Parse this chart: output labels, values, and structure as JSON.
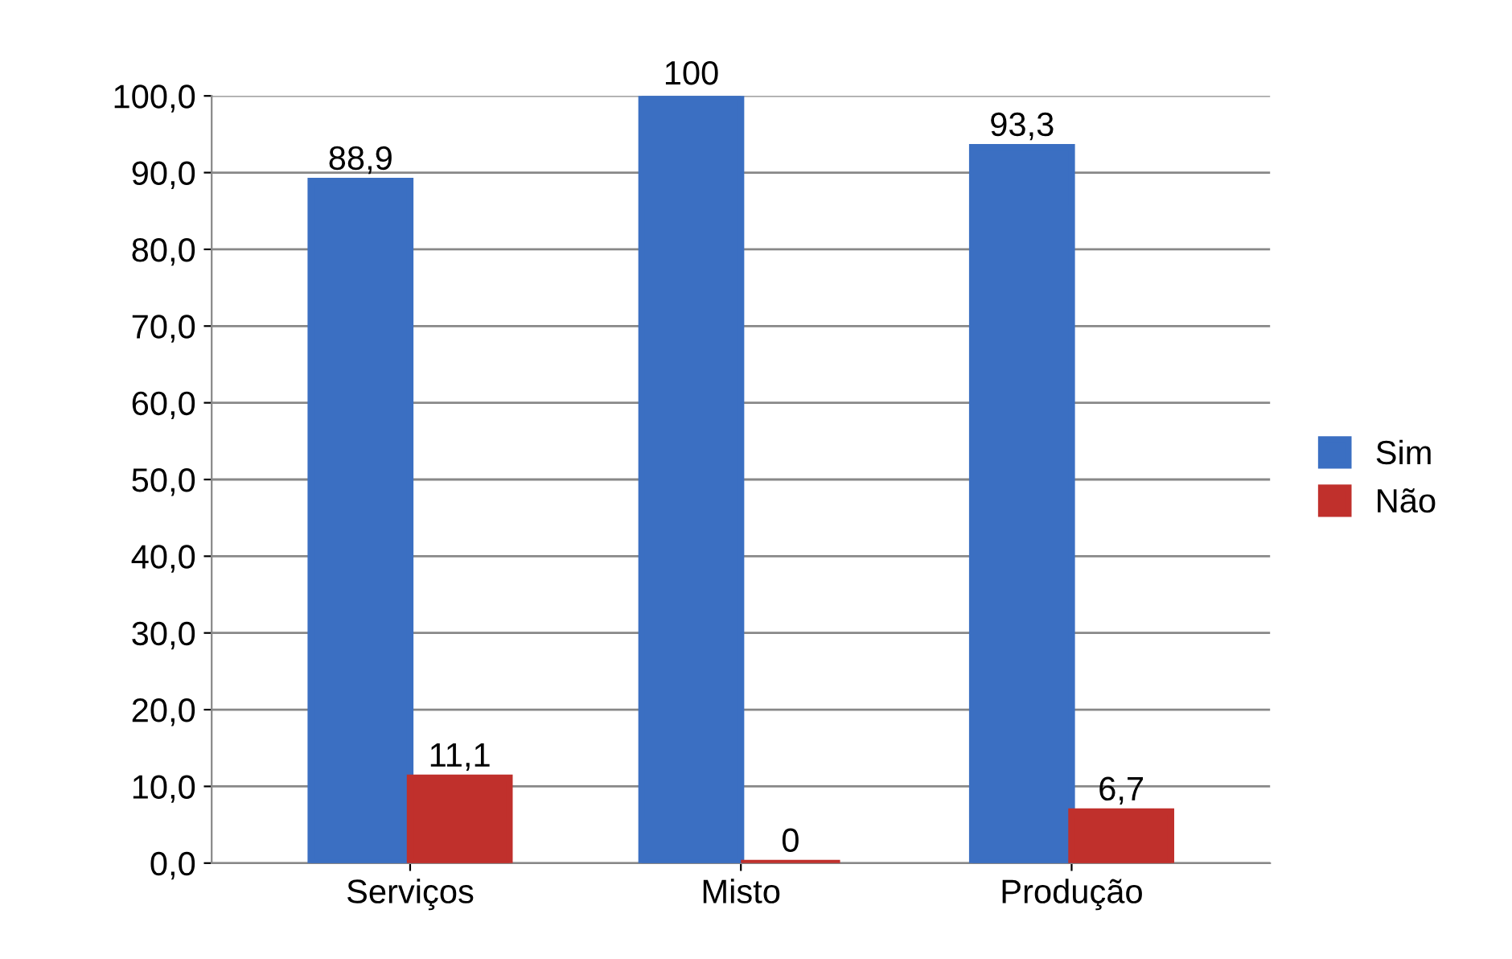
{
  "chart_data": {
    "type": "bar",
    "categories": [
      "Serviços",
      "Misto",
      "Produção"
    ],
    "series": [
      {
        "name": "Sim",
        "color": "#3b6fc2",
        "values": [
          88.9,
          100,
          93.3
        ],
        "value_labels": [
          "88,9",
          "100",
          "93,3"
        ]
      },
      {
        "name": "Não",
        "color": "#c0302c",
        "values": [
          11.1,
          0,
          6.7
        ],
        "value_labels": [
          "11,1",
          "0",
          "6,7"
        ]
      }
    ],
    "ylim": [
      0,
      100
    ],
    "yticks": [
      {
        "value": 0,
        "label": "0,0"
      },
      {
        "value": 10,
        "label": "10,0"
      },
      {
        "value": 20,
        "label": "20,0"
      },
      {
        "value": 30,
        "label": "30,0"
      },
      {
        "value": 40,
        "label": "40,0"
      },
      {
        "value": 50,
        "label": "50,0"
      },
      {
        "value": 60,
        "label": "60,0"
      },
      {
        "value": 70,
        "label": "70,0"
      },
      {
        "value": 80,
        "label": "80,0"
      },
      {
        "value": 90,
        "label": "90,0"
      },
      {
        "value": 100,
        "label": "100,0"
      }
    ],
    "grid": "y",
    "legend": "right"
  }
}
